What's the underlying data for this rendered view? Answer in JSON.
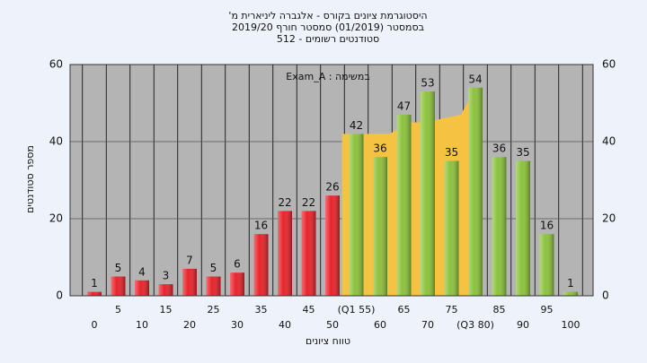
{
  "chart_data": {
    "type": "bar",
    "title": [
      "'היסטוגרמת ציונים בקורס - אלגברה ליניארית מ",
      "בסמסטר (01/2019) סמסטר חורף 2019/20",
      "סטודנטים רשומים - 512"
    ],
    "annotation": "Exam_A : במשימה",
    "x_label": "טווח ציונים",
    "y_label": "מספר סטודנטים",
    "categories": [
      "0",
      "5",
      "10",
      "15",
      "20",
      "25",
      "30",
      "35",
      "40",
      "45",
      "50",
      "(Q1 55)",
      "60",
      "65",
      "70",
      "75",
      "(Q3 80)",
      "85",
      "90",
      "95",
      "100"
    ],
    "values": [
      1,
      5,
      4,
      3,
      7,
      5,
      6,
      16,
      22,
      22,
      26,
      42,
      36,
      47,
      53,
      35,
      54,
      36,
      35,
      16,
      1
    ],
    "colors": [
      "#e8232b",
      "#e8232b",
      "#e8232b",
      "#e8232b",
      "#e8232b",
      "#e8232b",
      "#e8232b",
      "#e8232b",
      "#e8232b",
      "#e8232b",
      "#e8232b",
      "#8cc23c",
      "#8cc23c",
      "#8cc23c",
      "#8cc23c",
      "#8cc23c",
      "#8cc23c",
      "#8cc23c",
      "#8cc23c",
      "#8cc23c",
      "#8cc23c"
    ],
    "iqr_area": {
      "color": "#f5c242",
      "x": [
        52,
        62,
        66,
        70,
        73,
        77,
        80
      ],
      "values": [
        42,
        42,
        45,
        45,
        46,
        47,
        54
      ]
    },
    "ylim": [
      0,
      60
    ],
    "yticks": [
      0,
      20,
      40,
      60
    ],
    "grid": true
  }
}
